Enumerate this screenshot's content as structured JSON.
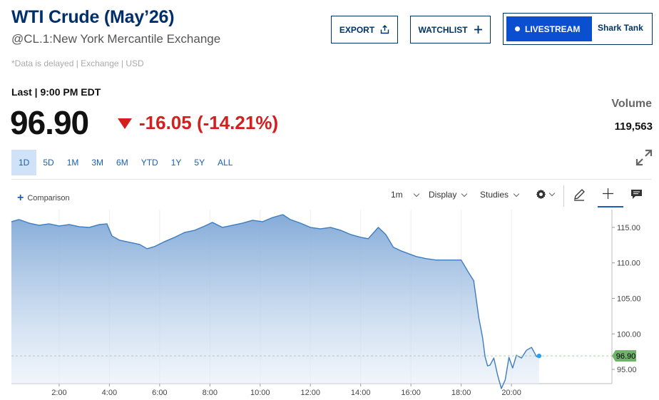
{
  "header": {
    "title": "WTI Crude (May’26)",
    "subtitle": "@CL.1:New York Mercantile Exchange",
    "delayed_note": "*Data is delayed | Exchange | USD",
    "export_label": "EXPORT",
    "watchlist_label": "WATCHLIST",
    "livestream_label": "LIVESTREAM",
    "show_label": "Shark Tank"
  },
  "quote": {
    "last_label": "Last | 9:00 PM EDT",
    "price": "96.90",
    "change": "-16.05 (-14.21%)",
    "volume_label": "Volume",
    "volume_value": "119,563"
  },
  "ranges": [
    "1D",
    "5D",
    "1M",
    "3M",
    "6M",
    "YTD",
    "1Y",
    "5Y",
    "ALL"
  ],
  "active_range": "1D",
  "toolbar": {
    "comparison_label": "Comparison",
    "interval_label": "1m",
    "display_label": "Display",
    "studies_label": "Studies"
  },
  "colors": {
    "brand": "#002f6c",
    "accent": "#1a5fb4",
    "down": "#d41f1f",
    "line": "#3d7cc0",
    "last_marker": "#6fb36a"
  },
  "chart_data": {
    "type": "area",
    "x_axis": {
      "unit": "hour",
      "range": [
        0.1,
        24
      ],
      "ticks": [
        2,
        4,
        6,
        8,
        10,
        12,
        14,
        16,
        18,
        20
      ],
      "tick_labels": [
        "2:00",
        "4:00",
        "6:00",
        "8:00",
        "10:00",
        "12:00",
        "14:00",
        "16:00",
        "18:00",
        "20:00"
      ]
    },
    "y_axis": {
      "range": [
        93,
        117.5
      ],
      "ticks": [
        95,
        100,
        105,
        110,
        115
      ],
      "tick_labels": [
        "95.00",
        "100.00",
        "105.00",
        "110.00",
        "115.00"
      ],
      "position": "right"
    },
    "grid": "vertical",
    "last_value": 96.9,
    "last_value_label": "96.90",
    "series": [
      {
        "x": [
          0.1,
          0.4,
          0.8,
          1.2,
          1.6,
          2.0,
          2.4,
          2.8,
          3.2,
          3.6,
          3.9,
          4.1,
          4.4,
          4.8,
          5.2,
          5.5,
          5.8,
          6.2,
          6.6,
          7.0,
          7.4,
          7.8,
          8.1,
          8.5,
          8.9,
          9.3,
          9.7,
          10.1,
          10.5,
          10.9,
          11.2,
          11.6,
          12.0,
          12.4,
          12.8,
          13.2,
          13.6,
          14.0,
          14.3,
          14.7,
          15.0,
          15.3,
          15.6,
          15.9,
          16.2,
          16.6,
          17.0,
          17.4,
          17.7,
          18.0,
          18.3,
          18.5,
          18.7,
          18.85,
          18.95,
          19.05,
          19.15,
          19.3,
          19.45,
          19.6,
          19.75,
          19.9,
          20.05,
          20.2,
          20.4,
          20.6,
          20.8,
          21.0,
          21.1
        ],
        "y": [
          115.8,
          116.1,
          115.6,
          115.3,
          115.5,
          115.2,
          115.4,
          115.1,
          115.0,
          115.4,
          115.5,
          113.8,
          113.2,
          112.9,
          112.6,
          112.0,
          112.3,
          113.0,
          113.6,
          114.3,
          114.6,
          115.2,
          115.7,
          115.0,
          115.3,
          115.6,
          116.0,
          115.8,
          116.4,
          116.8,
          116.1,
          115.6,
          115.0,
          114.8,
          115.0,
          114.6,
          114.0,
          113.6,
          113.4,
          115.0,
          114.0,
          112.2,
          111.7,
          111.3,
          110.9,
          110.6,
          110.4,
          110.4,
          110.4,
          110.4,
          108.6,
          107.5,
          102.3,
          99.5,
          96.8,
          95.5,
          95.6,
          96.6,
          94.2,
          92.3,
          93.5,
          96.7,
          95.2,
          97.0,
          96.6,
          97.7,
          98.1,
          96.8,
          96.9
        ]
      }
    ]
  }
}
